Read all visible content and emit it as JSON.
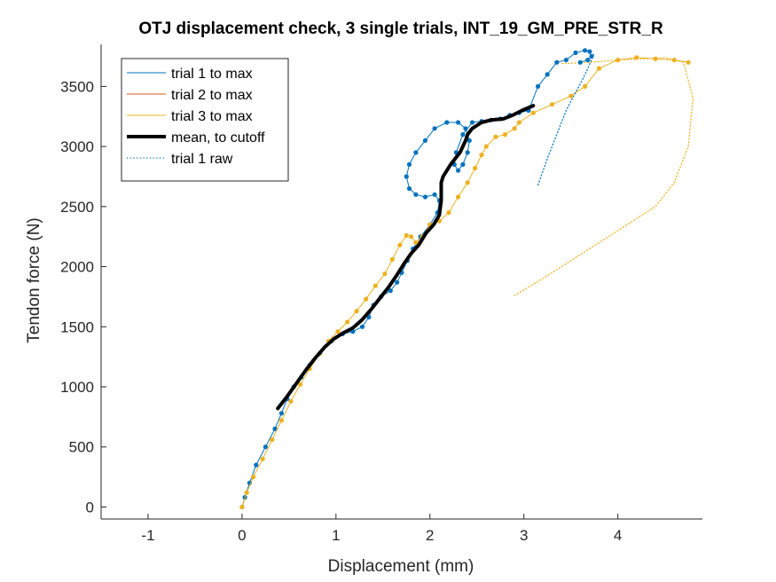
{
  "chart_data": {
    "type": "line",
    "title": "OTJ displacement check, 3 single trials, INT_19_GM_PRE_STR_R",
    "xlabel": "Displacement (mm)",
    "ylabel": "Tendon force (N)",
    "xlim": [
      -1.5,
      4.9
    ],
    "ylim": [
      -100,
      3850
    ],
    "xticks": [
      -1,
      0,
      1,
      2,
      3,
      4
    ],
    "yticks": [
      0,
      500,
      1000,
      1500,
      2000,
      2500,
      3000,
      3500
    ],
    "legend_position": "top-left",
    "grid": false,
    "series": [
      {
        "name": "trial 1 to max",
        "color": "#0072BD",
        "style": "solid-markers",
        "x": [
          0.0,
          0.03,
          0.08,
          0.15,
          0.25,
          0.35,
          0.42,
          0.48,
          0.55,
          0.63,
          0.72,
          0.83,
          0.95,
          1.07,
          1.18,
          1.28,
          1.35,
          1.4,
          1.48,
          1.58,
          1.65,
          1.7,
          1.76,
          1.82,
          1.9,
          2.0,
          2.08,
          2.1,
          2.05,
          1.95,
          1.85,
          1.78,
          1.75,
          1.78,
          1.85,
          1.95,
          2.05,
          2.18,
          2.3,
          2.38,
          2.42,
          2.4,
          2.35,
          2.3,
          2.26,
          2.28,
          2.35,
          2.45,
          2.55,
          2.65,
          2.75,
          2.85,
          2.95,
          3.05,
          3.15,
          3.25,
          3.35,
          3.45,
          3.55,
          3.65,
          3.7,
          3.72,
          3.68,
          3.6
        ],
        "y": [
          0,
          80,
          200,
          350,
          500,
          650,
          780,
          900,
          1000,
          1080,
          1180,
          1280,
          1380,
          1440,
          1460,
          1500,
          1580,
          1680,
          1750,
          1800,
          1870,
          1950,
          2050,
          2150,
          2250,
          2350,
          2450,
          2550,
          2600,
          2580,
          2600,
          2650,
          2750,
          2850,
          2950,
          3050,
          3150,
          3200,
          3200,
          3150,
          3050,
          2950,
          2850,
          2800,
          2850,
          2950,
          3100,
          3200,
          3210,
          3220,
          3230,
          3260,
          3280,
          3300,
          3500,
          3600,
          3700,
          3720,
          3780,
          3800,
          3790,
          3750,
          3720,
          3700
        ]
      },
      {
        "name": "trial 2 to max",
        "color": "#D95319",
        "style": "solid",
        "x": [],
        "y": []
      },
      {
        "name": "trial 3 to max",
        "color": "#EDB120",
        "style": "solid-markers",
        "x": [
          0.0,
          0.05,
          0.12,
          0.22,
          0.32,
          0.42,
          0.52,
          0.62,
          0.72,
          0.82,
          0.92,
          1.02,
          1.12,
          1.22,
          1.32,
          1.42,
          1.52,
          1.6,
          1.68,
          1.75,
          1.8,
          1.85,
          1.92,
          2.0,
          2.1,
          2.2,
          2.3,
          2.4,
          2.48,
          2.55,
          2.6,
          2.7,
          2.8,
          2.9,
          2.95,
          3.1,
          3.3,
          3.5,
          3.65,
          3.8,
          4.0,
          4.2,
          4.4,
          4.6,
          4.75
        ],
        "y": [
          0,
          120,
          250,
          400,
          560,
          720,
          880,
          1020,
          1150,
          1270,
          1380,
          1460,
          1540,
          1630,
          1730,
          1840,
          1940,
          2060,
          2180,
          2260,
          2250,
          2200,
          2250,
          2350,
          2380,
          2450,
          2580,
          2700,
          2820,
          2930,
          3000,
          3080,
          3100,
          3150,
          3200,
          3280,
          3350,
          3420,
          3500,
          3650,
          3720,
          3740,
          3730,
          3720,
          3700
        ]
      },
      {
        "name": "mean, to cutoff",
        "color": "#000000",
        "style": "thick",
        "x": [
          0.38,
          0.48,
          0.58,
          0.68,
          0.78,
          0.88,
          0.98,
          1.08,
          1.18,
          1.28,
          1.38,
          1.48,
          1.56,
          1.64,
          1.72,
          1.8,
          1.88,
          1.96,
          2.04,
          2.1,
          2.12,
          2.12,
          2.14,
          2.22,
          2.32,
          2.38,
          2.4,
          2.45,
          2.55,
          2.65,
          2.78,
          2.88,
          2.98,
          3.1
        ],
        "y": [
          820,
          920,
          1030,
          1140,
          1240,
          1330,
          1400,
          1450,
          1490,
          1560,
          1650,
          1750,
          1830,
          1920,
          2020,
          2110,
          2180,
          2280,
          2350,
          2430,
          2550,
          2700,
          2750,
          2850,
          2950,
          3050,
          3100,
          3150,
          3200,
          3220,
          3230,
          3260,
          3300,
          3340
        ]
      },
      {
        "name": "trial 1 raw",
        "color": "#0072BD",
        "style": "dotted",
        "x": [
          3.15,
          3.25,
          3.35,
          3.45,
          3.55,
          3.62,
          3.68,
          3.72,
          3.75
        ],
        "y": [
          2680,
          2900,
          3100,
          3300,
          3450,
          3550,
          3650,
          3720,
          3780
        ]
      }
    ],
    "annotation_series": [
      {
        "color": "#EDB120",
        "style": "dotted",
        "x": [
          2.9,
          3.2,
          3.6,
          4.0,
          4.4,
          4.6,
          4.75,
          4.8,
          4.7,
          4.5,
          4.3,
          4.0,
          3.7,
          3.4
        ],
        "y": [
          1760,
          1900,
          2100,
          2300,
          2500,
          2700,
          3000,
          3400,
          3700,
          3740,
          3730,
          3720,
          3700,
          3690
        ]
      }
    ]
  }
}
